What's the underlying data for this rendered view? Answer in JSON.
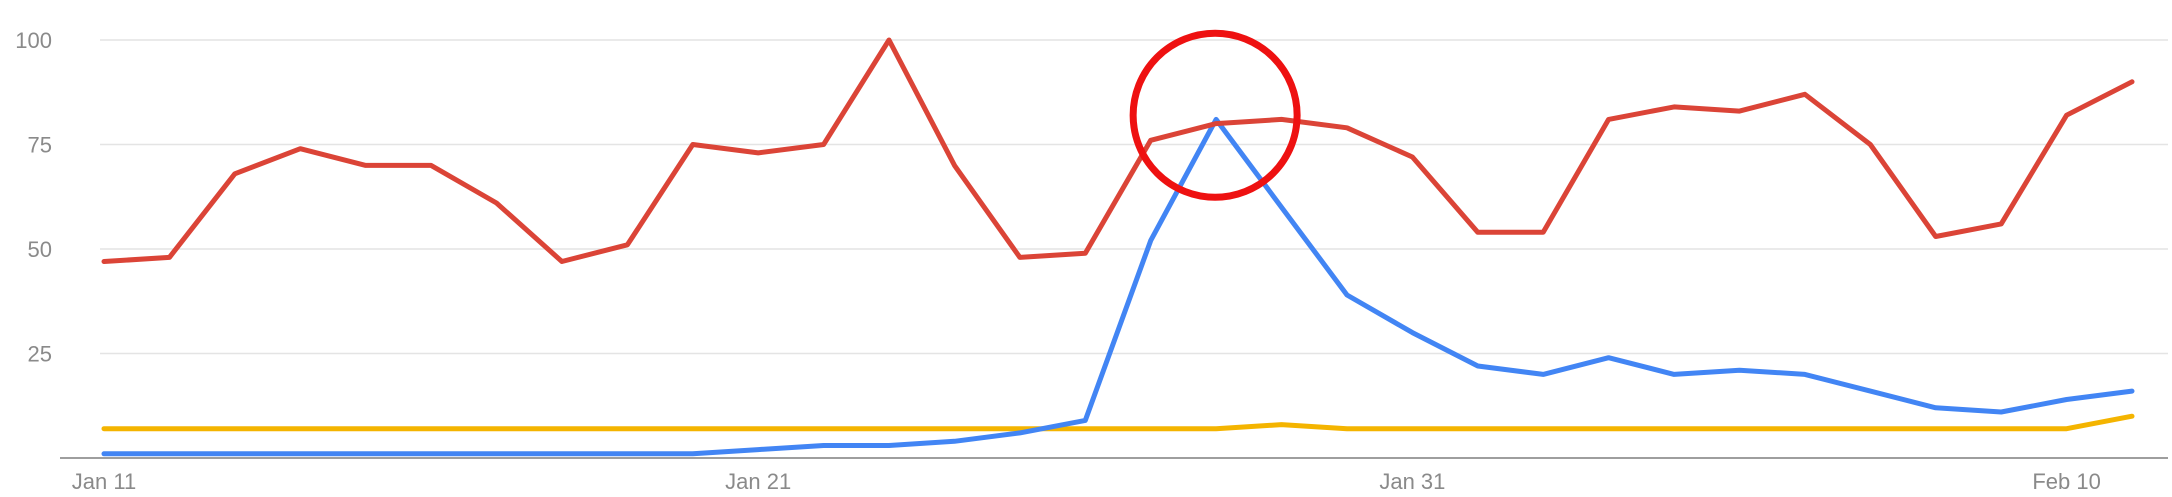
{
  "chart_data": {
    "type": "line",
    "title": "",
    "xlabel": "",
    "ylabel": "",
    "ylim": [
      0,
      100
    ],
    "y_ticks": [
      25,
      50,
      75,
      100
    ],
    "y_tick_labels": [
      "25",
      "50",
      "75",
      "100"
    ],
    "x_tick_labels": [
      {
        "label": "Jan 11",
        "index": 0
      },
      {
        "label": "Jan 21",
        "index": 10
      },
      {
        "label": "Jan 31",
        "index": 20
      },
      {
        "label": "Feb 10",
        "index": 30
      }
    ],
    "x": [
      "Jan 11",
      "Jan 12",
      "Jan 13",
      "Jan 14",
      "Jan 15",
      "Jan 16",
      "Jan 17",
      "Jan 18",
      "Jan 19",
      "Jan 20",
      "Jan 21",
      "Jan 22",
      "Jan 23",
      "Jan 24",
      "Jan 25",
      "Jan 26",
      "Jan 27",
      "Jan 28",
      "Jan 29",
      "Jan 30",
      "Jan 31",
      "Feb 1",
      "Feb 2",
      "Feb 3",
      "Feb 4",
      "Feb 5",
      "Feb 6",
      "Feb 7",
      "Feb 8",
      "Feb 9",
      "Feb 10",
      "Feb 11"
    ],
    "grid": true,
    "legend": "none",
    "series": [
      {
        "color": "#db4437",
        "values": [
          47,
          48,
          68,
          74,
          70,
          70,
          61,
          47,
          51,
          75,
          73,
          75,
          100,
          70,
          48,
          49,
          76,
          80,
          81,
          79,
          72,
          54,
          54,
          81,
          84,
          83,
          87,
          75,
          53,
          56,
          82,
          90
        ]
      },
      {
        "color": "#4285f4",
        "values": [
          1,
          1,
          1,
          1,
          1,
          1,
          1,
          1,
          1,
          1,
          2,
          3,
          3,
          4,
          6,
          9,
          52,
          81,
          60,
          39,
          30,
          22,
          20,
          24,
          20,
          21,
          20,
          16,
          12,
          11,
          14,
          16
        ]
      },
      {
        "color": "#f4b400",
        "values": [
          7,
          7,
          7,
          7,
          7,
          7,
          7,
          7,
          7,
          7,
          7,
          7,
          7,
          7,
          7,
          7,
          7,
          7,
          8,
          7,
          7,
          7,
          7,
          7,
          7,
          7,
          7,
          7,
          7,
          7,
          7,
          10
        ]
      }
    ],
    "annotation": {
      "shape": "circle",
      "color": "#ee1111",
      "center_index": 17,
      "center_value": 82
    }
  }
}
